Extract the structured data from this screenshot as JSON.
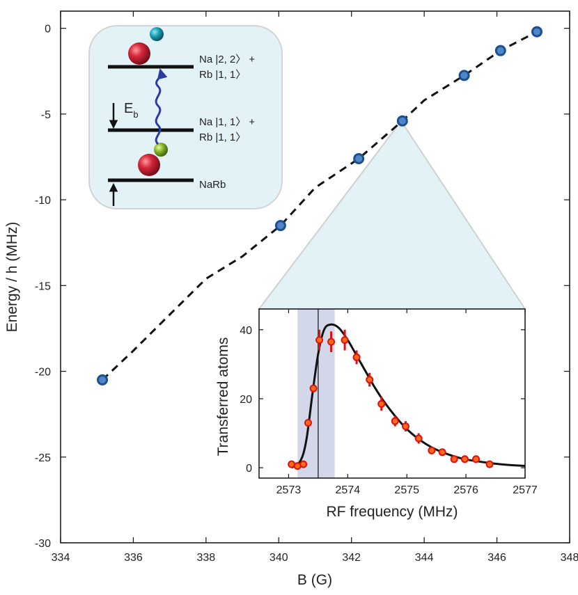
{
  "colors": {
    "main_marker_fill": "#4f86c6",
    "main_marker_edge": "#1c4f8f",
    "inset_marker_fill": "#ff6a1a",
    "inset_marker_edge": "#dd1111",
    "band": "#d2d8ea",
    "panel": "#e3f2f7",
    "axis": "#111111"
  },
  "chart_data": [
    {
      "type": "scatter",
      "xlabel": "B (G)",
      "ylabel": "Energy / h (MHz)",
      "xlim": [
        334,
        348
      ],
      "ylim": [
        -30,
        1
      ],
      "xticks": [
        "334",
        "336",
        "338",
        "340",
        "342",
        "344",
        "346",
        "348"
      ],
      "yticks": [
        "0",
        "-5",
        "-10",
        "-15",
        "-20",
        "-25",
        "-30"
      ],
      "grid": false,
      "x": [
        335.15,
        340.05,
        342.2,
        343.4,
        345.1,
        346.1,
        347.1
      ],
      "y": [
        -20.5,
        -11.5,
        -7.6,
        -5.4,
        -2.75,
        -1.3,
        -0.2
      ],
      "fit_line": {
        "style": "dashed",
        "x": [
          335.15,
          336,
          337,
          338,
          339,
          340.05,
          341,
          342.2,
          343.4,
          344,
          345.1,
          346.1,
          347.1
        ],
        "y": [
          -20.5,
          -18.8,
          -16.7,
          -14.6,
          -13.3,
          -11.5,
          -9.3,
          -7.6,
          -5.4,
          -4.2,
          -2.75,
          -1.3,
          -0.2
        ]
      }
    },
    {
      "type": "scatter",
      "xlabel": "RF frequency (MHz)",
      "ylabel": "Transferred atoms",
      "xlim": [
        2572.5,
        2577
      ],
      "ylim": [
        -3,
        46
      ],
      "xticks": [
        "2573",
        "2574",
        "2575",
        "2576",
        "2577"
      ],
      "yticks": [
        "0",
        "20",
        "40"
      ],
      "grid": false,
      "x": [
        2573.05,
        2573.15,
        2573.25,
        2573.33,
        2573.42,
        2573.52,
        2573.72,
        2573.95,
        2574.15,
        2574.37,
        2574.57,
        2574.8,
        2574.98,
        2575.2,
        2575.42,
        2575.6,
        2575.8,
        2575.98,
        2576.17,
        2576.4
      ],
      "y": [
        1,
        0.5,
        1,
        13,
        23,
        37,
        36.5,
        37,
        32,
        25.5,
        18.5,
        13.5,
        12,
        8.5,
        5,
        4.5,
        2.5,
        2.5,
        2.5,
        1
      ],
      "y_error": [
        0,
        0,
        0,
        0,
        0,
        3,
        3,
        3,
        2,
        2,
        2,
        1.5,
        1.5,
        1.5,
        1,
        1,
        0.5,
        0.5,
        0.5,
        0
      ],
      "fit_curve": {
        "x": [
          2573.05,
          2573.2,
          2573.3,
          2573.4,
          2573.5,
          2573.6,
          2573.72,
          2573.85,
          2574.0,
          2574.15,
          2574.3,
          2574.45,
          2574.6,
          2574.8,
          2575.0,
          2575.2,
          2575.4,
          2575.6,
          2575.8,
          2576.0,
          2576.3,
          2576.6,
          2577.0
        ],
        "y": [
          0,
          2,
          8,
          21,
          33,
          40,
          41.5,
          40.5,
          37,
          32.5,
          28,
          23.5,
          19.5,
          15,
          11.2,
          8.3,
          6.1,
          4.5,
          3.3,
          2.4,
          1.6,
          1.0,
          0.5
        ]
      },
      "vertical_line_x": 2573.5,
      "shaded_band": [
        2573.15,
        2573.78
      ]
    }
  ],
  "level_diagram": {
    "levels": [
      {
        "label_line1": "Na |2, 2〉 +",
        "label_line2": "Rb |1, 1〉"
      },
      {
        "label_line1": "Na |1, 1〉 +",
        "label_line2": "Rb |1, 1〉"
      },
      {
        "label_line1": "NaRb",
        "label_line2": ""
      }
    ],
    "binding_label": "E",
    "binding_subscript": "b"
  }
}
